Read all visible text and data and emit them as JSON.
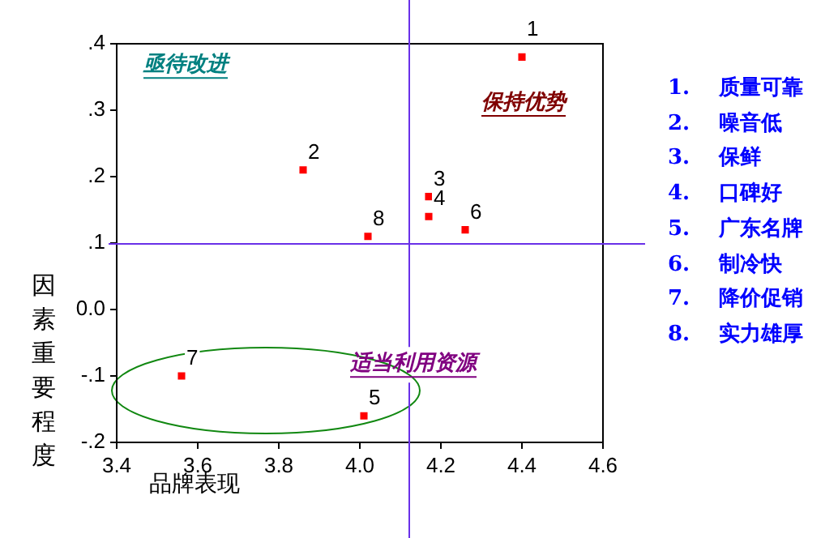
{
  "chart_data": {
    "type": "scatter",
    "xlabel": "品牌表现",
    "ylabel": "因素重要程度",
    "x": [
      4.4,
      3.86,
      4.17,
      4.17,
      4.01,
      4.26,
      3.56,
      4.02
    ],
    "series": [
      {
        "color": "#ff0000",
        "values": [
          0.38,
          0.21,
          0.17,
          0.14,
          -0.16,
          0.12,
          -0.1,
          0.11
        ]
      }
    ],
    "marker": "square",
    "grid": false,
    "legend": false,
    "xlim": [
      3.4,
      4.6
    ],
    "xticks": [
      3.4,
      3.6,
      3.8,
      {
        "value": 4.0,
        "label": "4.0"
      },
      4.2,
      4.4,
      4.6
    ],
    "ylim": [
      -0.2,
      0.4
    ],
    "yticks": [
      {
        "value": -0.2,
        "label": "-.2"
      },
      {
        "value": -0.1,
        "label": "-.1"
      },
      {
        "value": 0,
        "label": "0.0"
      },
      {
        "value": 0.1,
        "label": ".1"
      },
      {
        "value": 0.2,
        "label": ".2"
      },
      {
        "value": 0.3,
        "label": ".3"
      },
      {
        "value": 0.4,
        "label": ".4"
      }
    ],
    "ref_lines": [
      {
        "axis": "x",
        "value": 4.12,
        "color": "#6a30e8"
      },
      {
        "axis": "y",
        "value": 0.1,
        "color": "#6a30e8"
      }
    ],
    "annotations": [
      "亟待改进",
      "保持优势",
      "适当利用资源",
      {
        "text": "1",
        "x": 4.4,
        "y": 0.38
      },
      {
        "text": "2",
        "x": 3.86,
        "y": 0.21
      },
      {
        "text": "3",
        "x": 4.17,
        "y": 0.17
      },
      {
        "text": "4",
        "x": 4.17,
        "y": 0.14
      },
      {
        "text": "5",
        "x": 4.01,
        "y": -0.16
      },
      {
        "text": "6",
        "x": 4.26,
        "y": 0.12
      },
      {
        "text": "7",
        "x": 3.56,
        "y": -0.1
      },
      {
        "text": "8",
        "x": 4.02,
        "y": 0.11
      },
      "1.    质量可靠",
      "2.    噪音低",
      "3.    保鲜",
      "4.    口碑好",
      "5.    广东名牌",
      "6.    制冷快",
      "7.    降价促销",
      "8.    实力雄厚"
    ]
  }
}
